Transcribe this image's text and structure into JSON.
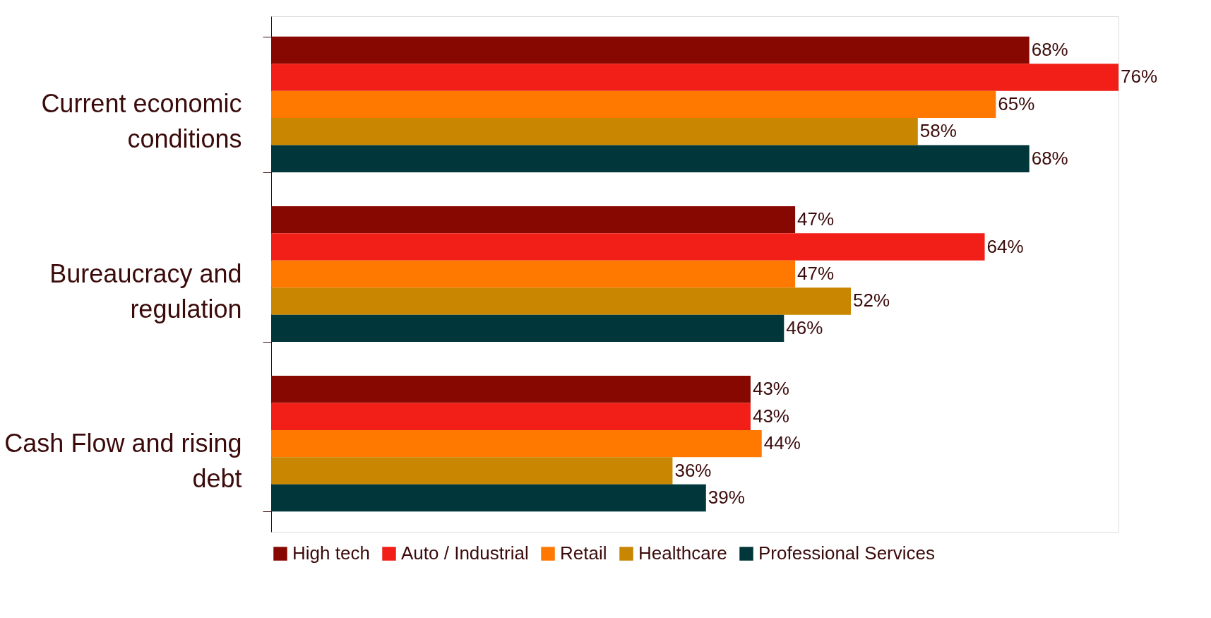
{
  "chart_data": {
    "type": "bar",
    "orientation": "horizontal",
    "legend": "bottom",
    "grid": false,
    "categories": [
      "Current economic conditions",
      "Bureaucracy and regulation",
      "Cash Flow and rising debt"
    ],
    "series": [
      {
        "name": "High tech",
        "color": "#870800",
        "values": [
          68,
          47,
          43
        ],
        "value_labels": [
          "68%",
          "47%",
          "43%"
        ]
      },
      {
        "name": "Auto / Industrial",
        "color": "#f21e18",
        "values": [
          76,
          64,
          43
        ],
        "value_labels": [
          "76%",
          "64%",
          "43%"
        ]
      },
      {
        "name": "Retail",
        "color": "#ff7800",
        "values": [
          65,
          47,
          44
        ],
        "value_labels": [
          "65%",
          "47%",
          "44%"
        ]
      },
      {
        "name": "Healthcare",
        "color": "#c98600",
        "values": [
          58,
          52,
          36
        ],
        "value_labels": [
          "58%",
          "52%",
          "36%"
        ]
      },
      {
        "name": "Professional Services",
        "color": "#01363a",
        "values": [
          68,
          46,
          39
        ],
        "value_labels": [
          "68%",
          "46%",
          "39%"
        ]
      }
    ]
  }
}
